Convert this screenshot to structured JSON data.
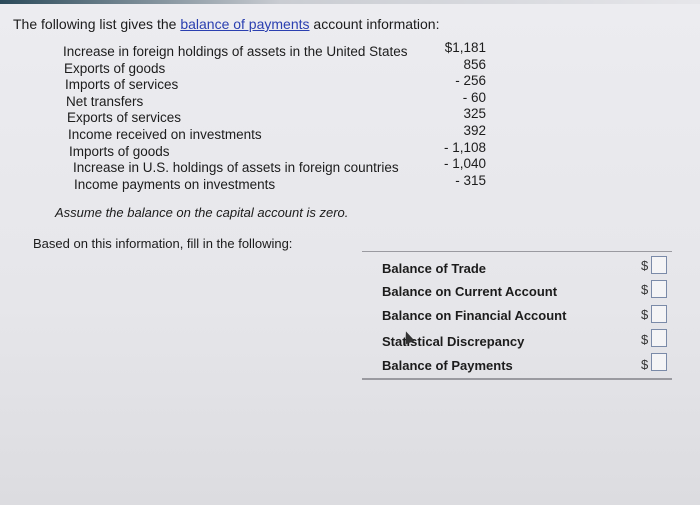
{
  "intro": {
    "prefix": "The following list gives the ",
    "link": "balance of payments",
    "suffix": " account information:"
  },
  "items": [
    {
      "label": "Increase in foreign holdings of assets in the United States",
      "value": "$1,181"
    },
    {
      "label": "Exports of goods",
      "value": "856"
    },
    {
      "label": "Imports of services",
      "value": "- 256"
    },
    {
      "label": "Net transfers",
      "value": "- 60"
    },
    {
      "label": "Exports of services",
      "value": "325"
    },
    {
      "label": "Income received on investments",
      "value": "392"
    },
    {
      "label": "Imports of goods",
      "value": "- 1,108"
    },
    {
      "label": "Increase in U.S. holdings of assets in foreign countries",
      "value": "- 1,040"
    },
    {
      "label": "Income payments on investments",
      "value": "- 315"
    }
  ],
  "assumption": "Assume the balance on the capital account is zero.",
  "instruction": "Based on this information, fill in the following:",
  "answers": [
    {
      "label": "Balance of Trade",
      "currency": "$",
      "value": ""
    },
    {
      "label": "Balance on Current Account",
      "currency": "$",
      "value": ""
    },
    {
      "label": "Balance on Financial Account",
      "currency": "$",
      "value": ""
    },
    {
      "label": "Statistical Discrepancy",
      "currency": "$",
      "value": ""
    },
    {
      "label": "Balance of Payments",
      "currency": "$",
      "value": ""
    }
  ]
}
